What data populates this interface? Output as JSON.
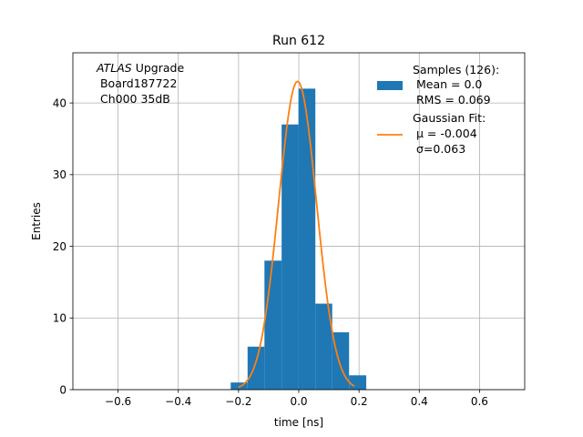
{
  "chart_data": {
    "type": "bar",
    "title": "Run 612",
    "xlabel": "time [ns]",
    "ylabel": "Entries",
    "xlim": [
      -0.75,
      0.75
    ],
    "ylim": [
      0,
      47
    ],
    "grid": true,
    "legend_position": "top-right",
    "xticks": [
      -0.6,
      -0.4,
      -0.2,
      0.0,
      0.2,
      0.4,
      0.6
    ],
    "xtick_labels": [
      "−0.6",
      "−0.4",
      "−0.2",
      "0.0",
      "0.2",
      "0.4",
      "0.6"
    ],
    "yticks": [
      0,
      10,
      20,
      30,
      40
    ],
    "ytick_labels": [
      "0",
      "10",
      "20",
      "30",
      "40"
    ],
    "annotation": {
      "line1_italic": "ATLAS",
      "line1_rest": " Upgrade",
      "line2": " Board187722",
      "line3": " Ch000 35dB"
    },
    "histogram": {
      "name": "Samples (126):",
      "color": "#1f77b4",
      "bin_edges": [
        -0.226,
        -0.17,
        -0.114,
        -0.057,
        -0.001,
        0.055,
        0.111,
        0.167,
        0.224
      ],
      "counts": [
        1,
        6,
        18,
        37,
        42,
        12,
        8,
        2
      ],
      "stats": [
        " Mean = 0.0",
        " RMS = 0.069"
      ]
    },
    "fit": {
      "name": "Gaussian Fit:",
      "color": "#ff7f0e",
      "mu": -0.004,
      "sigma": 0.063,
      "amplitude": 43,
      "x_range": [
        -0.2,
        0.185
      ],
      "mu_label": " μ = -0.004",
      "sigma_label": " σ=0.063"
    }
  }
}
